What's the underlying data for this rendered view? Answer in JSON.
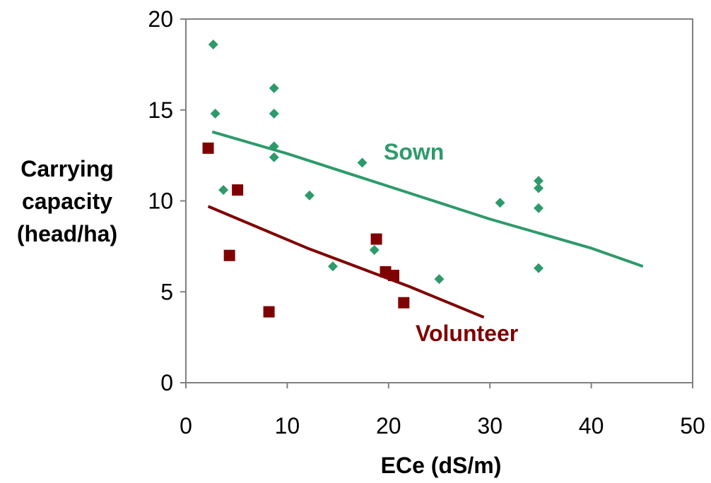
{
  "chart_data": {
    "type": "scatter",
    "title": "",
    "xlabel": "ECe (dS/m)",
    "ylabel": [
      "Carrying",
      "capacity",
      "(head/ha)"
    ],
    "xlim": [
      0,
      50
    ],
    "ylim": [
      0,
      20
    ],
    "x_ticks": [
      0,
      10,
      20,
      30,
      40,
      50
    ],
    "y_ticks": [
      0,
      5,
      10,
      15,
      20
    ],
    "grid": false,
    "colors": {
      "sown": "#2e9a6b",
      "volunteer": "#7f0000",
      "axis": "#808080"
    },
    "series": [
      {
        "name": "Sown",
        "marker": "diamond",
        "points": [
          [
            2.7,
            18.6
          ],
          [
            2.9,
            14.8
          ],
          [
            3.7,
            10.6
          ],
          [
            8.7,
            16.2
          ],
          [
            8.7,
            14.8
          ],
          [
            8.7,
            13.0
          ],
          [
            8.7,
            12.4
          ],
          [
            12.2,
            10.3
          ],
          [
            14.5,
            6.4
          ],
          [
            17.4,
            12.1
          ],
          [
            18.6,
            7.3
          ],
          [
            25.0,
            5.7
          ],
          [
            31.0,
            9.9
          ],
          [
            34.8,
            11.1
          ],
          [
            34.8,
            10.7
          ],
          [
            34.8,
            9.6
          ],
          [
            34.8,
            6.3
          ]
        ],
        "trend": [
          [
            2.6,
            13.8
          ],
          [
            10.0,
            12.6
          ],
          [
            20.0,
            10.8
          ],
          [
            30.0,
            9.0
          ],
          [
            40.0,
            7.4
          ],
          [
            45.1,
            6.4
          ]
        ]
      },
      {
        "name": "Volunteer",
        "marker": "square",
        "points": [
          [
            2.2,
            12.9
          ],
          [
            4.3,
            7.0
          ],
          [
            5.1,
            10.6
          ],
          [
            8.2,
            3.9
          ],
          [
            18.8,
            7.9
          ],
          [
            19.7,
            6.1
          ],
          [
            20.5,
            5.9
          ],
          [
            21.5,
            4.4
          ]
        ],
        "trend": [
          [
            2.2,
            9.7
          ],
          [
            12.0,
            7.4
          ],
          [
            22.0,
            5.3
          ],
          [
            29.4,
            3.6
          ]
        ]
      }
    ]
  }
}
